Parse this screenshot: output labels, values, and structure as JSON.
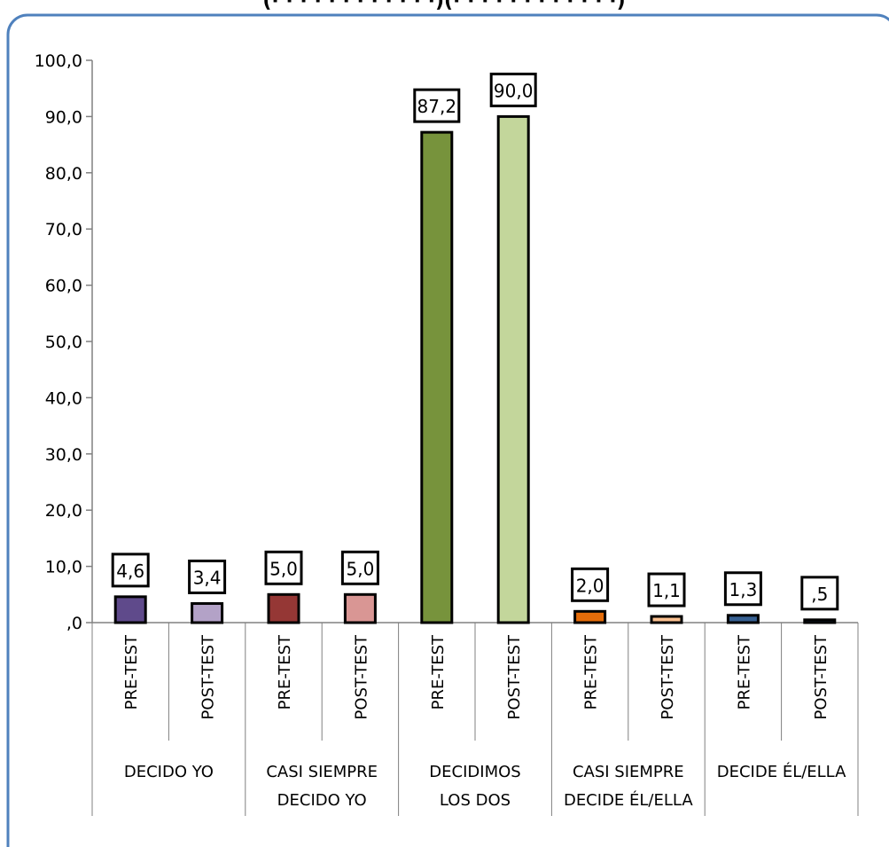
{
  "chart_data": {
    "type": "bar",
    "title": "(· · · · · · · · · · · ·)(· · · · · · · · · · · ·)",
    "groups": [
      "DECIDO YO",
      "CASI SIEMPRE DECIDO YO",
      "DECIDIMOS LOS DOS",
      "CASI SIEMPRE DECIDE ÉL/ELLA",
      "DECIDE ÉL/ELLA"
    ],
    "group_label_lines": [
      [
        "DECIDO YO"
      ],
      [
        "CASI SIEMPRE",
        "DECIDO YO"
      ],
      [
        "DECIDIMOS",
        "LOS DOS"
      ],
      [
        "CASI SIEMPRE",
        "DECIDE ÉL/ELLA"
      ],
      [
        "DECIDE ÉL/ELLA"
      ]
    ],
    "subcategories": [
      "PRE-TEST",
      "POST-TEST"
    ],
    "bars": [
      {
        "group": "DECIDO YO",
        "sub": "PRE-TEST",
        "value": 4.6,
        "label": "4,6",
        "color": "#5f4a8b"
      },
      {
        "group": "DECIDO YO",
        "sub": "POST-TEST",
        "value": 3.4,
        "label": "3,4",
        "color": "#b3a2c7"
      },
      {
        "group": "CASI SIEMPRE DECIDO YO",
        "sub": "PRE-TEST",
        "value": 5.0,
        "label": "5,0",
        "color": "#953735"
      },
      {
        "group": "CASI SIEMPRE DECIDO YO",
        "sub": "POST-TEST",
        "value": 5.0,
        "label": "5,0",
        "color": "#d99694"
      },
      {
        "group": "DECIDIMOS LOS DOS",
        "sub": "PRE-TEST",
        "value": 87.2,
        "label": "87,2",
        "color": "#77933c"
      },
      {
        "group": "DECIDIMOS LOS DOS",
        "sub": "POST-TEST",
        "value": 90.0,
        "label": "90,0",
        "color": "#c3d69b"
      },
      {
        "group": "CASI SIEMPRE DECIDE ÉL/ELLA",
        "sub": "PRE-TEST",
        "value": 2.0,
        "label": "2,0",
        "color": "#e46c0a"
      },
      {
        "group": "CASI SIEMPRE DECIDE ÉL/ELLA",
        "sub": "POST-TEST",
        "value": 1.1,
        "label": "1,1",
        "color": "#fac090"
      },
      {
        "group": "DECIDE ÉL/ELLA",
        "sub": "PRE-TEST",
        "value": 1.3,
        "label": "1,3",
        "color": "#376092"
      },
      {
        "group": "DECIDE ÉL/ELLA",
        "sub": "POST-TEST",
        "value": 0.5,
        "label": ",5",
        "color": "#1f3a5f"
      }
    ],
    "yticks": [
      ",0",
      "10,0",
      "20,0",
      "30,0",
      "40,0",
      "50,0",
      "60,0",
      "70,0",
      "80,0",
      "90,0",
      "100,0"
    ],
    "ylim": [
      0,
      100
    ],
    "xlabel": "",
    "ylabel": "",
    "grid": false,
    "legend": "none"
  },
  "colors": {
    "frame_border": "#4f81bd",
    "axis": "#808080",
    "bar_outline": "#000000"
  }
}
